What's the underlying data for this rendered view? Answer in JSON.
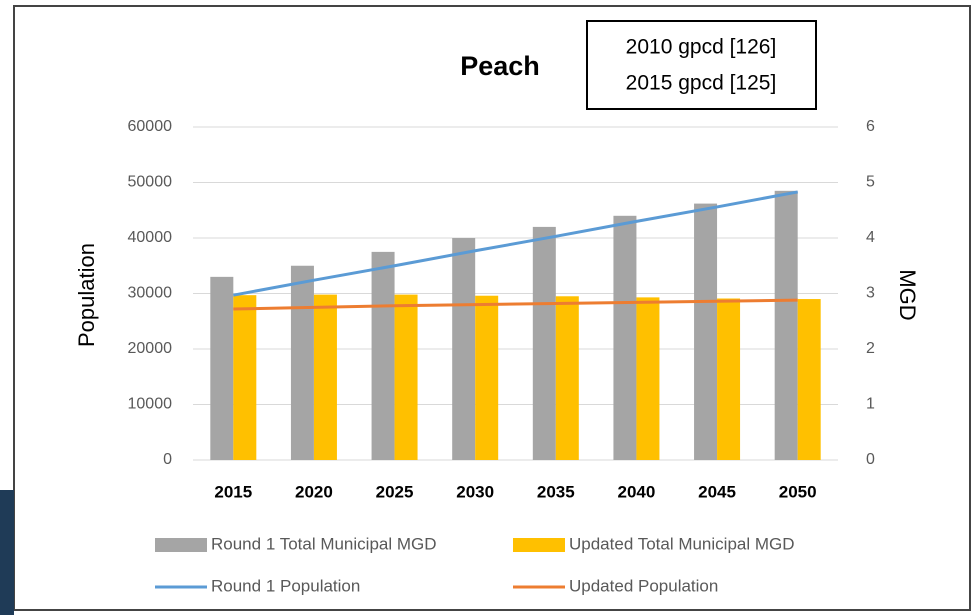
{
  "chart_data": {
    "type": "bar_line",
    "title": "Peach",
    "annotations": [
      "2010 gpcd [126]",
      "2015 gpcd [125]"
    ],
    "y_label": "Population",
    "y2_label": "MGD",
    "categories": [
      "2015",
      "2020",
      "2025",
      "2030",
      "2035",
      "2040",
      "2045",
      "2050"
    ],
    "series": [
      {
        "name": "Round 1 Total Municipal MGD",
        "kind": "bar",
        "axis": "y2",
        "color": "#a5a5a5",
        "values": [
          3.3,
          3.5,
          3.75,
          4.0,
          4.2,
          4.4,
          4.62,
          4.85
        ]
      },
      {
        "name": "Updated Total Municipal MGD",
        "kind": "bar",
        "axis": "y2",
        "color": "#ffc000",
        "values": [
          2.97,
          2.98,
          2.98,
          2.96,
          2.95,
          2.93,
          2.91,
          2.9
        ]
      },
      {
        "name": "Round 1 Population",
        "kind": "line",
        "color": "#5b9bd5",
        "values": [
          29700,
          32400,
          35000,
          37700,
          40300,
          43000,
          45600,
          48300
        ]
      },
      {
        "name": "Updated Population",
        "kind": "line",
        "color": "#ed7d31",
        "values": [
          27200,
          27500,
          27800,
          28000,
          28200,
          28400,
          28600,
          28800
        ]
      }
    ],
    "ylim": [
      0,
      60000
    ],
    "yticks": [
      0,
      10000,
      20000,
      30000,
      40000,
      50000,
      60000
    ],
    "y2lim": [
      0,
      6
    ],
    "y2ticks": [
      0,
      1,
      2,
      3,
      4,
      5,
      6
    ],
    "grid": true
  }
}
